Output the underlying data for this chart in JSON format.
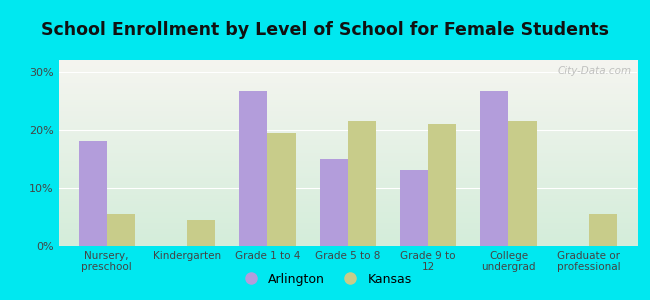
{
  "title": "School Enrollment by Level of School for Female Students",
  "categories": [
    "Nursery,\npreschool",
    "Kindergarten",
    "Grade 1 to 4",
    "Grade 5 to 8",
    "Grade 9 to\n12",
    "College\nundergrad",
    "Graduate or\nprofessional"
  ],
  "arlington": [
    18.0,
    0.0,
    26.7,
    15.0,
    13.0,
    26.7,
    0.0
  ],
  "kansas": [
    5.5,
    4.5,
    19.5,
    21.5,
    21.0,
    21.5,
    5.5
  ],
  "arlington_color": "#b39ddb",
  "kansas_color": "#c8cc8a",
  "background_outer": "#00e8f0",
  "background_inner_top": "#f5f5f0",
  "background_inner_bottom": "#d4edda",
  "ylim": [
    0,
    32
  ],
  "yticks": [
    0,
    10,
    20,
    30
  ],
  "ytick_labels": [
    "0%",
    "10%",
    "20%",
    "30%"
  ],
  "legend_labels": [
    "Arlington",
    "Kansas"
  ],
  "watermark": "City-Data.com",
  "title_fontsize": 13,
  "bar_width": 0.35
}
